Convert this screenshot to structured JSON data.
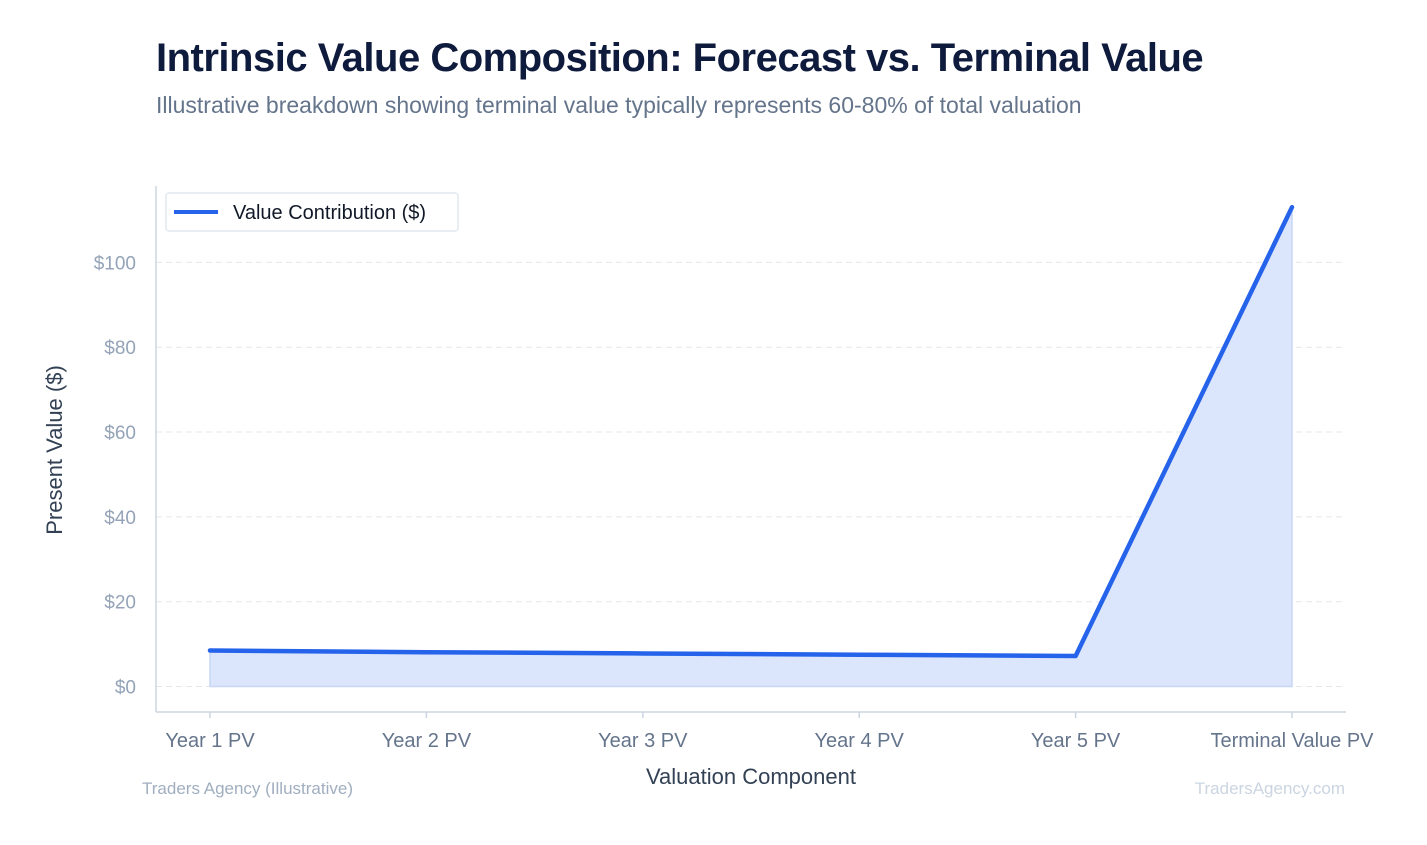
{
  "header": {
    "title": "Intrinsic Value Composition: Forecast vs. Terminal Value",
    "subtitle": "Illustrative breakdown showing terminal value typically represents 60-80% of total valuation"
  },
  "footer": {
    "source": "Traders Agency (Illustrative)",
    "watermark": "TradersAgency.com"
  },
  "chart_data": {
    "type": "area",
    "categories": [
      "Year 1 PV",
      "Year 2 PV",
      "Year 3 PV",
      "Year 4 PV",
      "Year 5 PV",
      "Terminal Value PV"
    ],
    "series": [
      {
        "name": "Value Contribution ($)",
        "values": [
          8.5,
          8.1,
          7.8,
          7.5,
          7.2,
          113
        ]
      }
    ],
    "xlabel": "Valuation Component",
    "ylabel": "Present Value ($)",
    "ylim": [
      -6,
      118
    ],
    "yticks": [
      0,
      20,
      40,
      60,
      80,
      100
    ],
    "ytick_labels": [
      "$0",
      "$20",
      "$40",
      "$60",
      "$80",
      "$100"
    ],
    "grid": "horizontal dashed",
    "legend": "top-left",
    "colors": {
      "line": "#2563eb",
      "fill": "#dbe5fb",
      "grid": "#e5e7eb",
      "axis": "#cbd5e1"
    }
  }
}
